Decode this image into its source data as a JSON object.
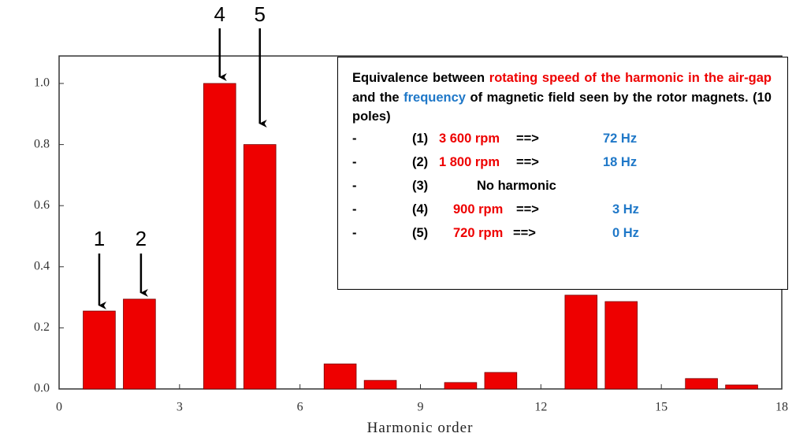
{
  "chart_data": {
    "type": "bar",
    "xlabel": "Harmonic order",
    "x": [
      1,
      2,
      4,
      5,
      7,
      8,
      10,
      11,
      13,
      14,
      16,
      17
    ],
    "values": [
      0.255,
      0.294,
      1.0,
      0.8,
      0.082,
      0.028,
      0.021,
      0.054,
      0.307,
      0.286,
      0.034,
      0.013
    ],
    "color": "#ee0000",
    "xlim": [
      0,
      18
    ],
    "xticks": [
      0,
      3,
      6,
      9,
      12,
      15,
      18
    ],
    "ylim": [
      0,
      1.09
    ],
    "yticks": [
      {
        "value": 0,
        "label": "0.0"
      },
      {
        "value": 0.2,
        "label": "0.2"
      },
      {
        "value": 0.4,
        "label": "0.4"
      },
      {
        "value": 0.6,
        "label": "0.6"
      },
      {
        "value": 0.8,
        "label": "0.8"
      },
      {
        "value": 1,
        "label": "1.0"
      }
    ],
    "annotations": [
      {
        "text": "1",
        "x": 1
      },
      {
        "text": "2",
        "x": 2
      },
      {
        "text": "4",
        "x": 4
      },
      {
        "text": "5",
        "x": 5
      }
    ]
  },
  "info_box": {
    "paragraph": [
      {
        "text": "Equivalence between ",
        "color": "#000000"
      },
      {
        "text": "rotating speed of the harmonic in the air-gap",
        "color": "#ee0000"
      },
      {
        "text": " and the ",
        "color": "#000000"
      },
      {
        "text": "frequency",
        "color": "#1f78c8"
      },
      {
        "text": " of magnetic field seen by the rotor magnets. (10 poles)",
        "color": "#000000"
      }
    ],
    "items": [
      {
        "bullet": "-",
        "num": "(1)",
        "speed": "3 600 rpm",
        "arrow": "==>",
        "freq": "72 Hz"
      },
      {
        "bullet": "-",
        "num": "(2)",
        "speed": "1 800 rpm",
        "arrow": "==>",
        "freq": "18 Hz"
      },
      {
        "bullet": "-",
        "num": "(3)",
        "note": "No harmonic"
      },
      {
        "bullet": "-",
        "num": "(4)",
        "speed": "900 rpm",
        "arrow": "==>",
        "freq": "3 Hz"
      },
      {
        "bullet": "-",
        "num": "(5)",
        "speed": "720 rpm",
        "arrow": "==>",
        "freq": "0 Hz"
      }
    ]
  }
}
